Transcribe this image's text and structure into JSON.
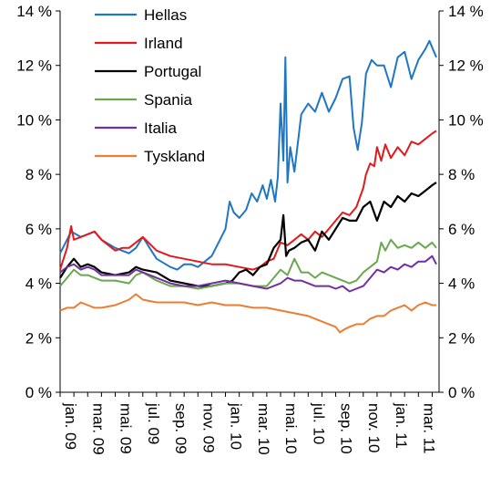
{
  "chart_data": {
    "type": "line",
    "title": "",
    "xlabel": "",
    "ylabel": "",
    "ylim": [
      0,
      14
    ],
    "y_ticks": [
      "0 %",
      "2 %",
      "4 %",
      "6 %",
      "8 %",
      "10 %",
      "12 %",
      "14 %"
    ],
    "y_tick_values": [
      0,
      2,
      4,
      6,
      8,
      10,
      12,
      14
    ],
    "y_axis_position": "both",
    "x_tick_labels": [
      "jan. 09",
      "mar. 09",
      "mai. 09",
      "jul. 09",
      "sep. 09",
      "nov. 09",
      "jan. 10",
      "mar. 10",
      "mai. 10",
      "jul. 10",
      "sep. 10",
      "nov. 10",
      "jan. 11",
      "mar. 11"
    ],
    "x_tick_values": [
      0,
      2,
      4,
      6,
      8,
      10,
      12,
      14,
      16,
      18,
      20,
      22,
      24,
      26
    ],
    "xlim": [
      0,
      27.5
    ],
    "grid": false,
    "legend_position": "top-left",
    "series": [
      {
        "name": "Hellas",
        "color": "#1f77c4",
        "x": [
          0,
          0.5,
          0.8,
          1.5,
          2,
          2.5,
          3,
          4,
          5,
          5.5,
          6,
          6.5,
          7,
          8,
          8.5,
          9,
          9.5,
          10,
          10.5,
          11,
          11.5,
          12,
          12.3,
          12.6,
          13,
          13.5,
          13.9,
          14.3,
          14.7,
          15,
          15.3,
          15.6,
          15.8,
          16,
          16.2,
          16.35,
          16.5,
          16.7,
          17,
          17.5,
          18,
          18.5,
          19,
          19.5,
          20,
          20.5,
          21,
          21.3,
          21.6,
          21.9,
          22.2,
          22.6,
          23,
          23.5,
          24,
          24.5,
          25,
          25.5,
          26,
          26.5,
          26.8,
          27.3
        ],
        "y": [
          5.1,
          5.6,
          5.9,
          5.7,
          5.8,
          5.9,
          5.6,
          5.3,
          5.1,
          5.3,
          5.7,
          5.3,
          4.9,
          4.6,
          4.5,
          4.7,
          4.7,
          4.6,
          4.8,
          5.0,
          5.5,
          6.0,
          7.0,
          6.6,
          6.4,
          6.7,
          7.3,
          7.0,
          7.6,
          7.1,
          7.8,
          7.0,
          7.9,
          10.6,
          8.5,
          12.3,
          7.7,
          9.0,
          8.1,
          10.2,
          10.6,
          10.3,
          11.0,
          10.3,
          10.8,
          11.5,
          11.6,
          9.7,
          8.9,
          9.9,
          11.7,
          12.2,
          12.0,
          12.0,
          11.2,
          12.3,
          12.5,
          11.5,
          12.2,
          12.6,
          12.9,
          12.3
        ]
      },
      {
        "name": "Irland",
        "color": "#e31a1c",
        "x": [
          0,
          0.5,
          0.8,
          1,
          1.5,
          2,
          2.5,
          3,
          4,
          4.5,
          5,
          5.5,
          6,
          7,
          8,
          9,
          10,
          11,
          12,
          13,
          14,
          14.5,
          15,
          15.5,
          16,
          16.5,
          17,
          17.5,
          18,
          18.5,
          19,
          19.5,
          20,
          20.5,
          21,
          21.5,
          22,
          22.2,
          22.5,
          22.8,
          23,
          23.3,
          23.6,
          24,
          24.5,
          25,
          25.5,
          26,
          26.5,
          27,
          27.3
        ],
        "y": [
          4.5,
          5.3,
          6.1,
          5.6,
          5.7,
          5.8,
          5.9,
          5.6,
          5.2,
          5.3,
          5.3,
          5.5,
          5.7,
          5.2,
          5.0,
          4.9,
          4.8,
          4.7,
          4.7,
          4.6,
          4.5,
          4.6,
          4.8,
          4.9,
          5.5,
          5.4,
          5.6,
          5.8,
          5.6,
          5.9,
          5.7,
          6.0,
          6.3,
          6.6,
          6.5,
          6.8,
          7.5,
          8.0,
          8.4,
          8.3,
          9.0,
          8.5,
          9.1,
          8.6,
          9.0,
          8.7,
          9.2,
          9.1,
          9.3,
          9.5,
          9.6
        ]
      },
      {
        "name": "Portugal",
        "color": "#000000",
        "x": [
          0,
          0.5,
          1,
          1.5,
          2,
          2.5,
          3,
          4,
          5,
          5.5,
          6,
          7,
          8,
          9,
          10,
          11,
          12,
          12.5,
          13,
          13.5,
          14,
          14.5,
          15,
          15.5,
          16,
          16.2,
          16.4,
          16.6,
          17,
          17.5,
          18,
          18.5,
          19,
          19.5,
          20,
          20.5,
          21,
          21.5,
          22,
          22.5,
          23,
          23.5,
          24,
          24.5,
          25,
          25.5,
          26,
          26.5,
          27,
          27.3
        ],
        "y": [
          4.2,
          4.6,
          4.9,
          4.6,
          4.7,
          4.6,
          4.4,
          4.3,
          4.4,
          4.6,
          4.5,
          4.4,
          4.1,
          4.0,
          3.9,
          3.9,
          4.0,
          4.1,
          4.4,
          4.5,
          4.3,
          4.6,
          4.7,
          5.3,
          5.6,
          6.5,
          5.0,
          5.2,
          5.3,
          5.5,
          5.6,
          5.2,
          5.9,
          5.6,
          6.0,
          6.4,
          6.3,
          6.3,
          6.8,
          7.0,
          6.3,
          7.0,
          6.8,
          7.2,
          7.0,
          7.3,
          7.2,
          7.4,
          7.6,
          7.7
        ]
      },
      {
        "name": "Spania",
        "color": "#6aa84f",
        "x": [
          0,
          0.5,
          1,
          1.5,
          2,
          2.5,
          3,
          4,
          5,
          5.5,
          6,
          7,
          8,
          9,
          10,
          11,
          12,
          13,
          14,
          15,
          15.5,
          16,
          16.5,
          17,
          17.5,
          18,
          18.5,
          19,
          19.5,
          20,
          20.5,
          21,
          21.5,
          22,
          22.5,
          23,
          23.3,
          23.6,
          24,
          24.5,
          25,
          25.5,
          26,
          26.5,
          27,
          27.3
        ],
        "y": [
          3.9,
          4.2,
          4.5,
          4.3,
          4.3,
          4.2,
          4.1,
          4.1,
          4.0,
          4.3,
          4.4,
          4.1,
          3.9,
          3.9,
          3.8,
          3.9,
          4.0,
          4.0,
          3.9,
          3.9,
          4.2,
          4.5,
          4.3,
          4.9,
          4.4,
          4.4,
          4.2,
          4.4,
          4.3,
          4.2,
          4.1,
          4.0,
          4.1,
          4.4,
          4.6,
          4.8,
          5.5,
          5.2,
          5.6,
          5.3,
          5.4,
          5.3,
          5.5,
          5.3,
          5.5,
          5.3
        ]
      },
      {
        "name": "Italia",
        "color": "#7030a0",
        "x": [
          0,
          0.5,
          1,
          1.5,
          2,
          2.5,
          3,
          4,
          5,
          5.5,
          6,
          7,
          8,
          9,
          10,
          11,
          12,
          13,
          14,
          15,
          16,
          16.5,
          17,
          17.5,
          18,
          18.5,
          19,
          19.5,
          20,
          20.5,
          21,
          21.5,
          22,
          22.5,
          23,
          23.5,
          24,
          24.5,
          25,
          25.5,
          26,
          26.5,
          27,
          27.3
        ],
        "y": [
          4.4,
          4.6,
          4.7,
          4.5,
          4.6,
          4.5,
          4.3,
          4.3,
          4.3,
          4.5,
          4.4,
          4.2,
          4.0,
          3.9,
          3.9,
          4.0,
          4.1,
          4.0,
          3.9,
          3.8,
          4.0,
          4.2,
          4.1,
          4.1,
          4.0,
          3.9,
          3.9,
          3.9,
          3.8,
          3.9,
          3.7,
          3.8,
          3.9,
          4.2,
          4.5,
          4.4,
          4.6,
          4.5,
          4.7,
          4.6,
          4.8,
          4.8,
          5.0,
          4.7
        ]
      },
      {
        "name": "Tyskland",
        "color": "#ed7d31",
        "x": [
          0,
          0.5,
          1,
          1.5,
          2,
          2.5,
          3,
          4,
          5,
          5.5,
          6,
          7,
          8,
          9,
          10,
          11,
          12,
          13,
          14,
          15,
          16,
          17,
          18,
          19,
          19.5,
          20,
          20.3,
          20.6,
          21,
          21.5,
          22,
          22.5,
          23,
          23.5,
          24,
          24.5,
          25,
          25.5,
          26,
          26.5,
          27,
          27.3
        ],
        "y": [
          3.0,
          3.1,
          3.1,
          3.3,
          3.2,
          3.1,
          3.1,
          3.2,
          3.4,
          3.6,
          3.4,
          3.3,
          3.3,
          3.3,
          3.2,
          3.3,
          3.2,
          3.2,
          3.1,
          3.1,
          3.0,
          2.9,
          2.8,
          2.6,
          2.5,
          2.4,
          2.2,
          2.3,
          2.4,
          2.5,
          2.5,
          2.7,
          2.8,
          2.8,
          3.0,
          3.1,
          3.2,
          3.0,
          3.2,
          3.3,
          3.2,
          3.2
        ]
      }
    ]
  }
}
